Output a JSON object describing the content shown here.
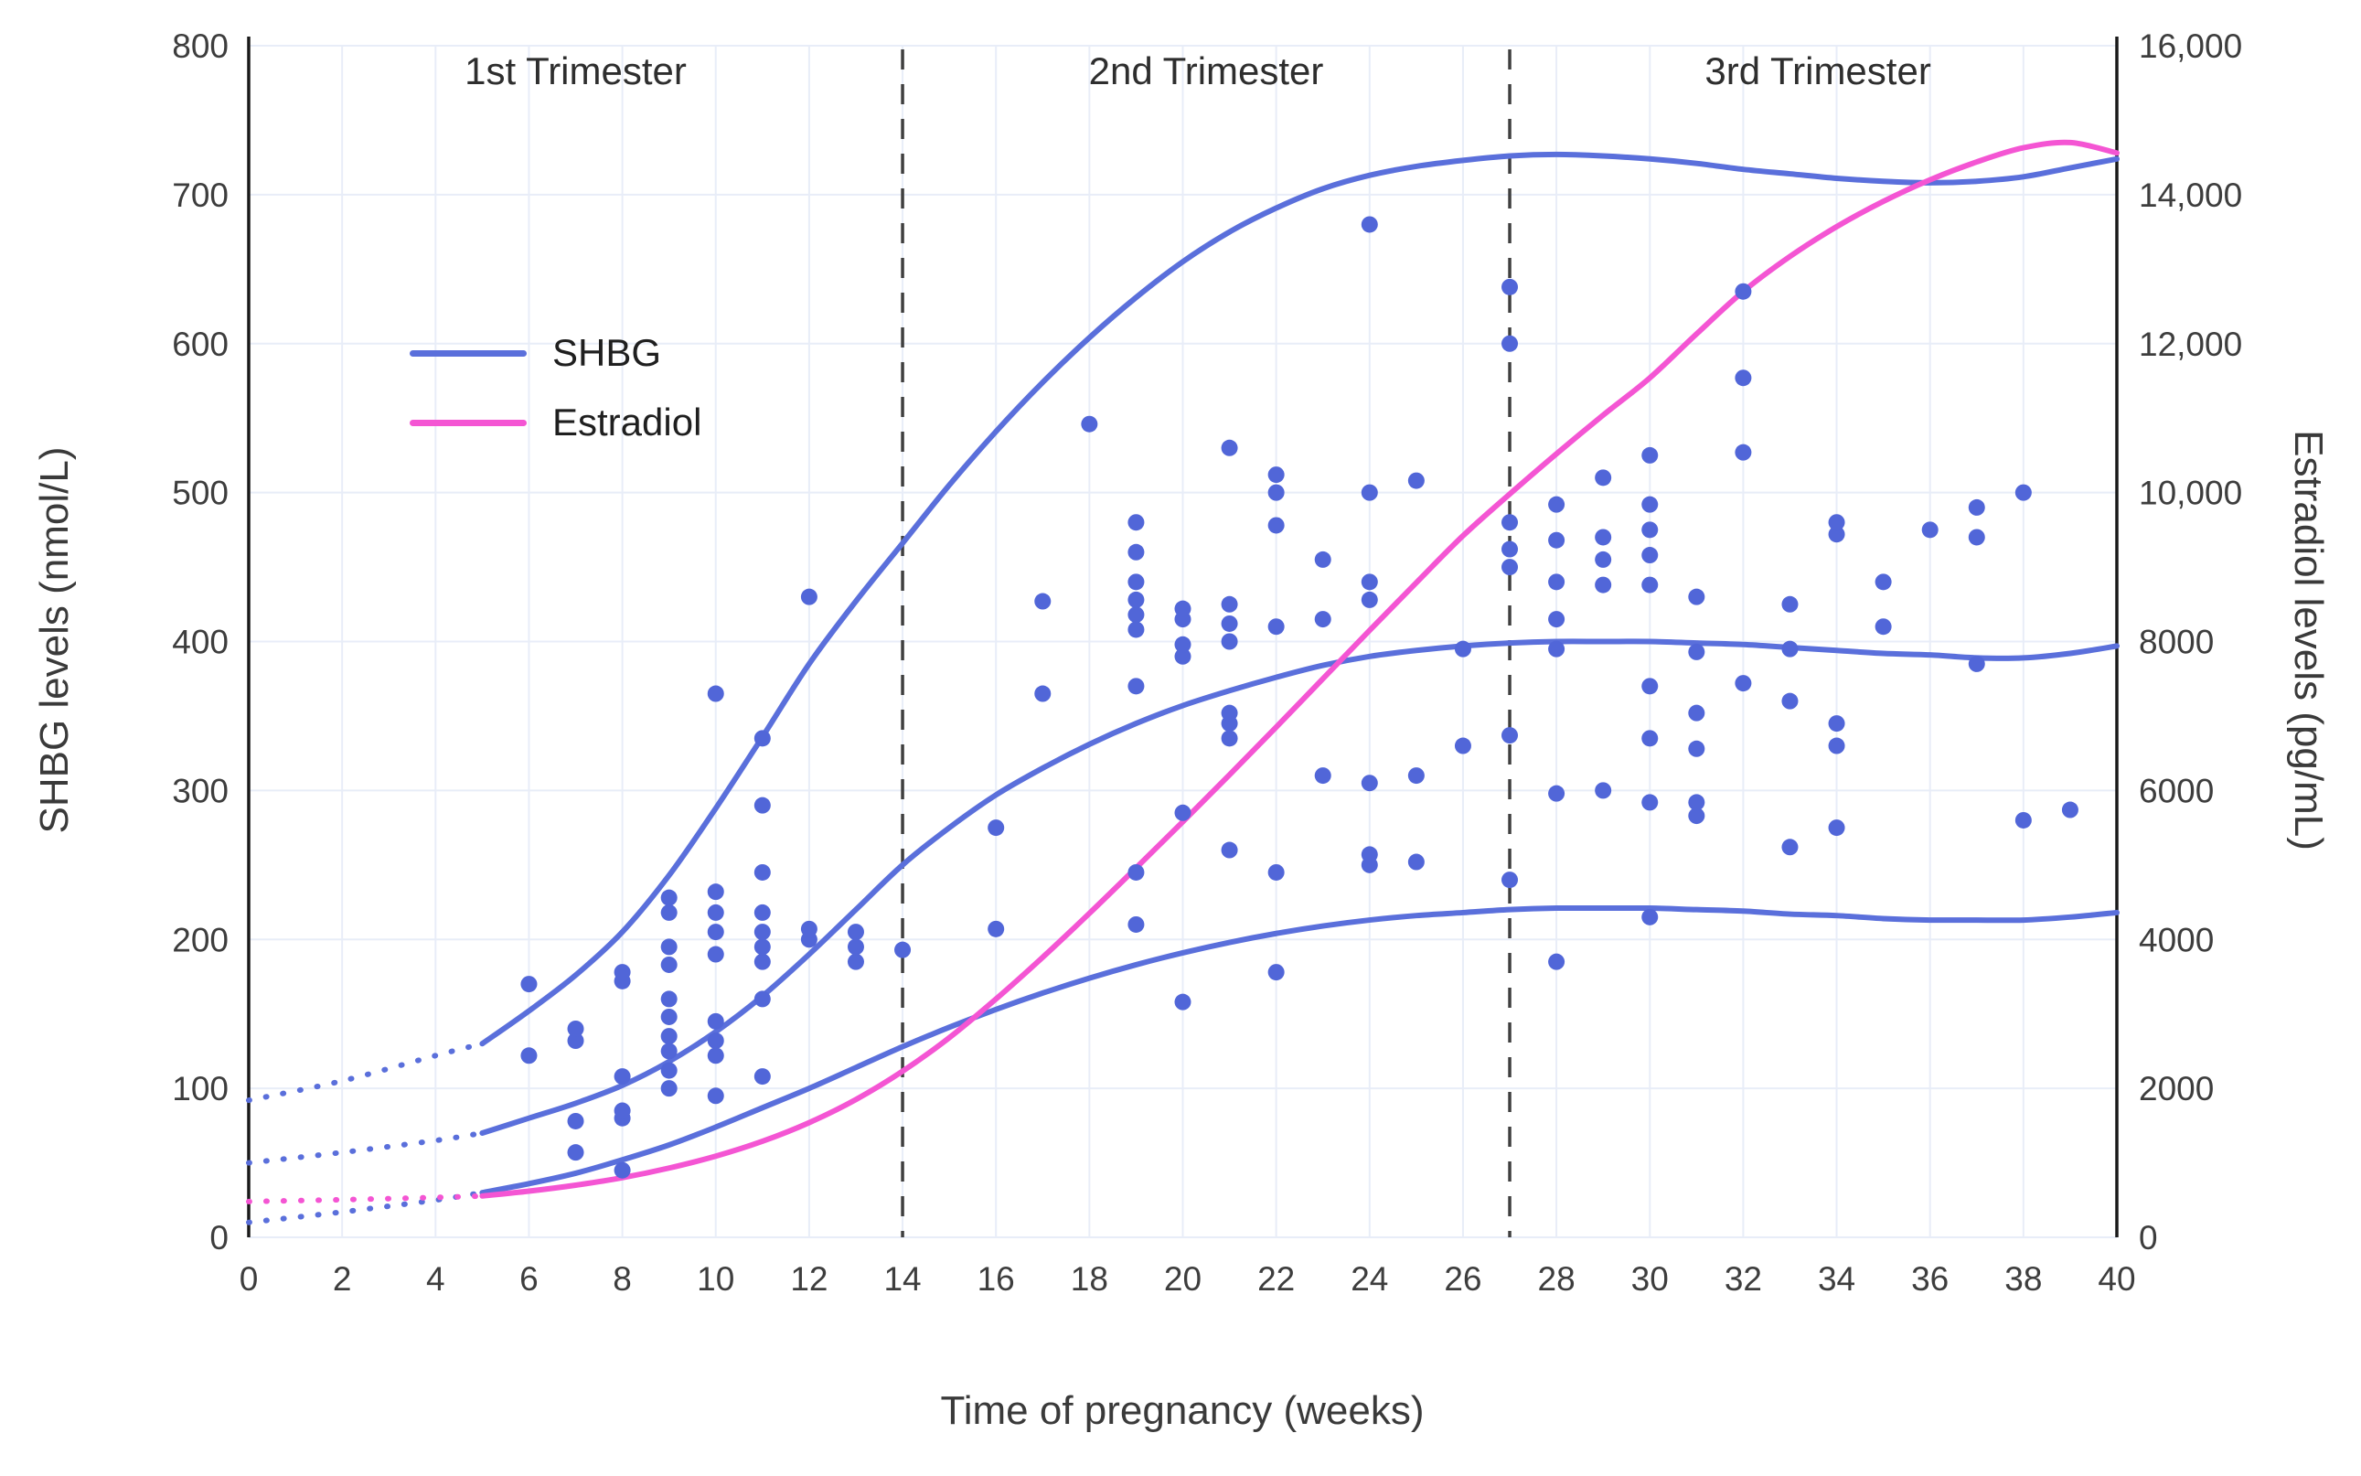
{
  "chart_data": {
    "type": "line",
    "title": "",
    "xlabel": "Time of pregnancy (weeks)",
    "ylabel_left": "SHBG levels (nmol/L)",
    "ylabel_right": "Estradiol levels (pg/mL)",
    "x_range": [
      0,
      40
    ],
    "x_ticks": [
      0,
      2,
      4,
      6,
      8,
      10,
      12,
      14,
      16,
      18,
      20,
      22,
      24,
      26,
      28,
      30,
      32,
      34,
      36,
      38,
      40
    ],
    "y_left_range": [
      0,
      800
    ],
    "y_left_ticks": [
      0,
      100,
      200,
      300,
      400,
      500,
      600,
      700,
      800
    ],
    "y_right_range": [
      0,
      16000
    ],
    "y_right_ticks": [
      0,
      2000,
      4000,
      6000,
      8000,
      10000,
      12000,
      14000,
      16000
    ],
    "y_right_tick_labels": [
      "0",
      "2000",
      "4000",
      "6000",
      "8000",
      "10,000",
      "12,000",
      "14,000",
      "16,000"
    ],
    "grid": true,
    "legend_position": "upper-left-inside",
    "trimester_boundaries_weeks": [
      14,
      27
    ],
    "annotations": [
      {
        "text": "1st Trimester",
        "x_week": 7
      },
      {
        "text": "2nd Trimester",
        "x_week": 20.5
      },
      {
        "text": "3rd Trimester",
        "x_week": 33.6
      }
    ],
    "legend": [
      {
        "label": "SHBG",
        "color": "#5a6fdb"
      },
      {
        "label": "Estradiol",
        "color": "#f455d3"
      }
    ],
    "colors": {
      "grid": "#e8edf8",
      "axis": "#1a1a1a",
      "boundary": "#3f3f3f",
      "scatter": "#5166d8"
    },
    "series": [
      {
        "name": "SHBG upper reference curve",
        "axis": "left",
        "color": "#5a6fdb",
        "width": 6,
        "dotted_until_week": 5,
        "points": [
          [
            0,
            92
          ],
          [
            2,
            105
          ],
          [
            4,
            122
          ],
          [
            5,
            130
          ],
          [
            6,
            152
          ],
          [
            7,
            176
          ],
          [
            8,
            205
          ],
          [
            9,
            243
          ],
          [
            10,
            288
          ],
          [
            11,
            336
          ],
          [
            12,
            385
          ],
          [
            13,
            427
          ],
          [
            14,
            466
          ],
          [
            15,
            505
          ],
          [
            16,
            541
          ],
          [
            17,
            574
          ],
          [
            18,
            604
          ],
          [
            19,
            631
          ],
          [
            20,
            655
          ],
          [
            21,
            675
          ],
          [
            22,
            691
          ],
          [
            23,
            704
          ],
          [
            24,
            713
          ],
          [
            25,
            719
          ],
          [
            26,
            723
          ],
          [
            27,
            726
          ],
          [
            28,
            727
          ],
          [
            29,
            726
          ],
          [
            30,
            724
          ],
          [
            31,
            721
          ],
          [
            32,
            717
          ],
          [
            33,
            714
          ],
          [
            34,
            711
          ],
          [
            35,
            709
          ],
          [
            36,
            708
          ],
          [
            37,
            709
          ],
          [
            38,
            712
          ],
          [
            39,
            718
          ],
          [
            40,
            724
          ]
        ]
      },
      {
        "name": "SHBG median reference curve",
        "axis": "left",
        "color": "#5a6fdb",
        "width": 6,
        "dotted_until_week": 5,
        "points": [
          [
            0,
            50
          ],
          [
            2,
            57
          ],
          [
            4,
            65
          ],
          [
            5,
            70
          ],
          [
            6,
            80
          ],
          [
            7,
            90
          ],
          [
            8,
            102
          ],
          [
            9,
            118
          ],
          [
            10,
            138
          ],
          [
            11,
            162
          ],
          [
            12,
            190
          ],
          [
            13,
            220
          ],
          [
            14,
            250
          ],
          [
            15,
            275
          ],
          [
            16,
            297
          ],
          [
            17,
            315
          ],
          [
            18,
            331
          ],
          [
            19,
            345
          ],
          [
            20,
            357
          ],
          [
            21,
            367
          ],
          [
            22,
            376
          ],
          [
            23,
            384
          ],
          [
            24,
            390
          ],
          [
            25,
            394
          ],
          [
            26,
            397
          ],
          [
            27,
            399
          ],
          [
            28,
            400
          ],
          [
            29,
            400
          ],
          [
            30,
            400
          ],
          [
            31,
            399
          ],
          [
            32,
            398
          ],
          [
            33,
            396
          ],
          [
            34,
            394
          ],
          [
            35,
            392
          ],
          [
            36,
            391
          ],
          [
            37,
            389
          ],
          [
            38,
            389
          ],
          [
            39,
            392
          ],
          [
            40,
            397
          ]
        ]
      },
      {
        "name": "SHBG lower reference curve",
        "axis": "left",
        "color": "#5a6fdb",
        "width": 6,
        "dotted_until_week": 5,
        "points": [
          [
            0,
            10
          ],
          [
            2,
            17
          ],
          [
            4,
            25
          ],
          [
            5,
            30
          ],
          [
            6,
            36
          ],
          [
            7,
            43
          ],
          [
            8,
            52
          ],
          [
            9,
            62
          ],
          [
            10,
            74
          ],
          [
            11,
            87
          ],
          [
            12,
            100
          ],
          [
            13,
            114
          ],
          [
            14,
            128
          ],
          [
            15,
            141
          ],
          [
            16,
            153
          ],
          [
            17,
            164
          ],
          [
            18,
            174
          ],
          [
            19,
            183
          ],
          [
            20,
            191
          ],
          [
            21,
            198
          ],
          [
            22,
            204
          ],
          [
            23,
            209
          ],
          [
            24,
            213
          ],
          [
            25,
            216
          ],
          [
            26,
            218
          ],
          [
            27,
            220
          ],
          [
            28,
            221
          ],
          [
            29,
            221
          ],
          [
            30,
            221
          ],
          [
            31,
            220
          ],
          [
            32,
            219
          ],
          [
            33,
            217
          ],
          [
            34,
            216
          ],
          [
            35,
            214
          ],
          [
            36,
            213
          ],
          [
            37,
            213
          ],
          [
            38,
            213
          ],
          [
            39,
            215
          ],
          [
            40,
            218
          ]
        ]
      },
      {
        "name": "Estradiol curve",
        "axis": "right",
        "color": "#f455d3",
        "width": 6,
        "dotted_until_week": 5,
        "points": [
          [
            0,
            480
          ],
          [
            2,
            505
          ],
          [
            4,
            535
          ],
          [
            5,
            555
          ],
          [
            6,
            620
          ],
          [
            7,
            700
          ],
          [
            8,
            800
          ],
          [
            9,
            930
          ],
          [
            10,
            1090
          ],
          [
            11,
            1290
          ],
          [
            12,
            1540
          ],
          [
            13,
            1850
          ],
          [
            14,
            2230
          ],
          [
            15,
            2680
          ],
          [
            16,
            3200
          ],
          [
            17,
            3760
          ],
          [
            18,
            4350
          ],
          [
            19,
            4960
          ],
          [
            20,
            5580
          ],
          [
            21,
            6210
          ],
          [
            22,
            6850
          ],
          [
            23,
            7500
          ],
          [
            24,
            8150
          ],
          [
            25,
            8790
          ],
          [
            26,
            9420
          ],
          [
            27,
            9980
          ],
          [
            28,
            10520
          ],
          [
            29,
            11040
          ],
          [
            30,
            11540
          ],
          [
            31,
            12130
          ],
          [
            32,
            12700
          ],
          [
            33,
            13170
          ],
          [
            34,
            13570
          ],
          [
            35,
            13910
          ],
          [
            36,
            14200
          ],
          [
            37,
            14440
          ],
          [
            38,
            14630
          ],
          [
            39,
            14700
          ],
          [
            40,
            14560
          ]
        ]
      }
    ],
    "scatter": {
      "name": "SHBG individual measurements",
      "axis": "left",
      "color": "#5166d8",
      "radius": 9,
      "points": [
        [
          6,
          122
        ],
        [
          6,
          170
        ],
        [
          7,
          57
        ],
        [
          7,
          78
        ],
        [
          7,
          132
        ],
        [
          7,
          140
        ],
        [
          8,
          45
        ],
        [
          8,
          80
        ],
        [
          8,
          85
        ],
        [
          8,
          108
        ],
        [
          8,
          172
        ],
        [
          8,
          178
        ],
        [
          9,
          100
        ],
        [
          9,
          112
        ],
        [
          9,
          125
        ],
        [
          9,
          135
        ],
        [
          9,
          148
        ],
        [
          9,
          160
        ],
        [
          9,
          183
        ],
        [
          9,
          195
        ],
        [
          9,
          218
        ],
        [
          9,
          228
        ],
        [
          10,
          95
        ],
        [
          10,
          122
        ],
        [
          10,
          132
        ],
        [
          10,
          145
        ],
        [
          10,
          190
        ],
        [
          10,
          205
        ],
        [
          10,
          218
        ],
        [
          10,
          232
        ],
        [
          10,
          365
        ],
        [
          11,
          108
        ],
        [
          11,
          160
        ],
        [
          11,
          185
        ],
        [
          11,
          195
        ],
        [
          11,
          205
        ],
        [
          11,
          218
        ],
        [
          11,
          245
        ],
        [
          11,
          290
        ],
        [
          11,
          335
        ],
        [
          12,
          200
        ],
        [
          12,
          207
        ],
        [
          12,
          430
        ],
        [
          13,
          185
        ],
        [
          13,
          195
        ],
        [
          13,
          205
        ],
        [
          14,
          193
        ],
        [
          16,
          207
        ],
        [
          16,
          275
        ],
        [
          17,
          365
        ],
        [
          17,
          427
        ],
        [
          18,
          546
        ],
        [
          19,
          210
        ],
        [
          19,
          245
        ],
        [
          19,
          370
        ],
        [
          19,
          408
        ],
        [
          19,
          418
        ],
        [
          19,
          428
        ],
        [
          19,
          440
        ],
        [
          19,
          460
        ],
        [
          19,
          480
        ],
        [
          20,
          158
        ],
        [
          20,
          285
        ],
        [
          20,
          390
        ],
        [
          20,
          398
        ],
        [
          20,
          415
        ],
        [
          20,
          422
        ],
        [
          21,
          260
        ],
        [
          21,
          335
        ],
        [
          21,
          345
        ],
        [
          21,
          352
        ],
        [
          21,
          400
        ],
        [
          21,
          412
        ],
        [
          21,
          425
        ],
        [
          21,
          530
        ],
        [
          22,
          178
        ],
        [
          22,
          245
        ],
        [
          22,
          410
        ],
        [
          22,
          478
        ],
        [
          22,
          500
        ],
        [
          22,
          512
        ],
        [
          23,
          310
        ],
        [
          23,
          415
        ],
        [
          23,
          455
        ],
        [
          24,
          250
        ],
        [
          24,
          257
        ],
        [
          24,
          305
        ],
        [
          24,
          428
        ],
        [
          24,
          440
        ],
        [
          24,
          500
        ],
        [
          24,
          680
        ],
        [
          25,
          252
        ],
        [
          25,
          310
        ],
        [
          25,
          508
        ],
        [
          26,
          330
        ],
        [
          26,
          395
        ],
        [
          27,
          240
        ],
        [
          27,
          337
        ],
        [
          27,
          450
        ],
        [
          27,
          462
        ],
        [
          27,
          480
        ],
        [
          27,
          600
        ],
        [
          27,
          638
        ],
        [
          28,
          185
        ],
        [
          28,
          298
        ],
        [
          28,
          395
        ],
        [
          28,
          415
        ],
        [
          28,
          440
        ],
        [
          28,
          468
        ],
        [
          28,
          492
        ],
        [
          29,
          300
        ],
        [
          29,
          438
        ],
        [
          29,
          455
        ],
        [
          29,
          470
        ],
        [
          29,
          510
        ],
        [
          30,
          215
        ],
        [
          30,
          292
        ],
        [
          30,
          335
        ],
        [
          30,
          370
        ],
        [
          30,
          438
        ],
        [
          30,
          458
        ],
        [
          30,
          475
        ],
        [
          30,
          492
        ],
        [
          30,
          525
        ],
        [
          31,
          283
        ],
        [
          31,
          292
        ],
        [
          31,
          328
        ],
        [
          31,
          352
        ],
        [
          31,
          393
        ],
        [
          31,
          430
        ],
        [
          32,
          372
        ],
        [
          32,
          527
        ],
        [
          32,
          577
        ],
        [
          32,
          635
        ],
        [
          33,
          262
        ],
        [
          33,
          360
        ],
        [
          33,
          395
        ],
        [
          33,
          425
        ],
        [
          34,
          275
        ],
        [
          34,
          330
        ],
        [
          34,
          345
        ],
        [
          34,
          472
        ],
        [
          34,
          480
        ],
        [
          35,
          410
        ],
        [
          35,
          440
        ],
        [
          36,
          475
        ],
        [
          37,
          385
        ],
        [
          37,
          470
        ],
        [
          37,
          490
        ],
        [
          38,
          280
        ],
        [
          38,
          500
        ],
        [
          39,
          287
        ]
      ]
    }
  }
}
